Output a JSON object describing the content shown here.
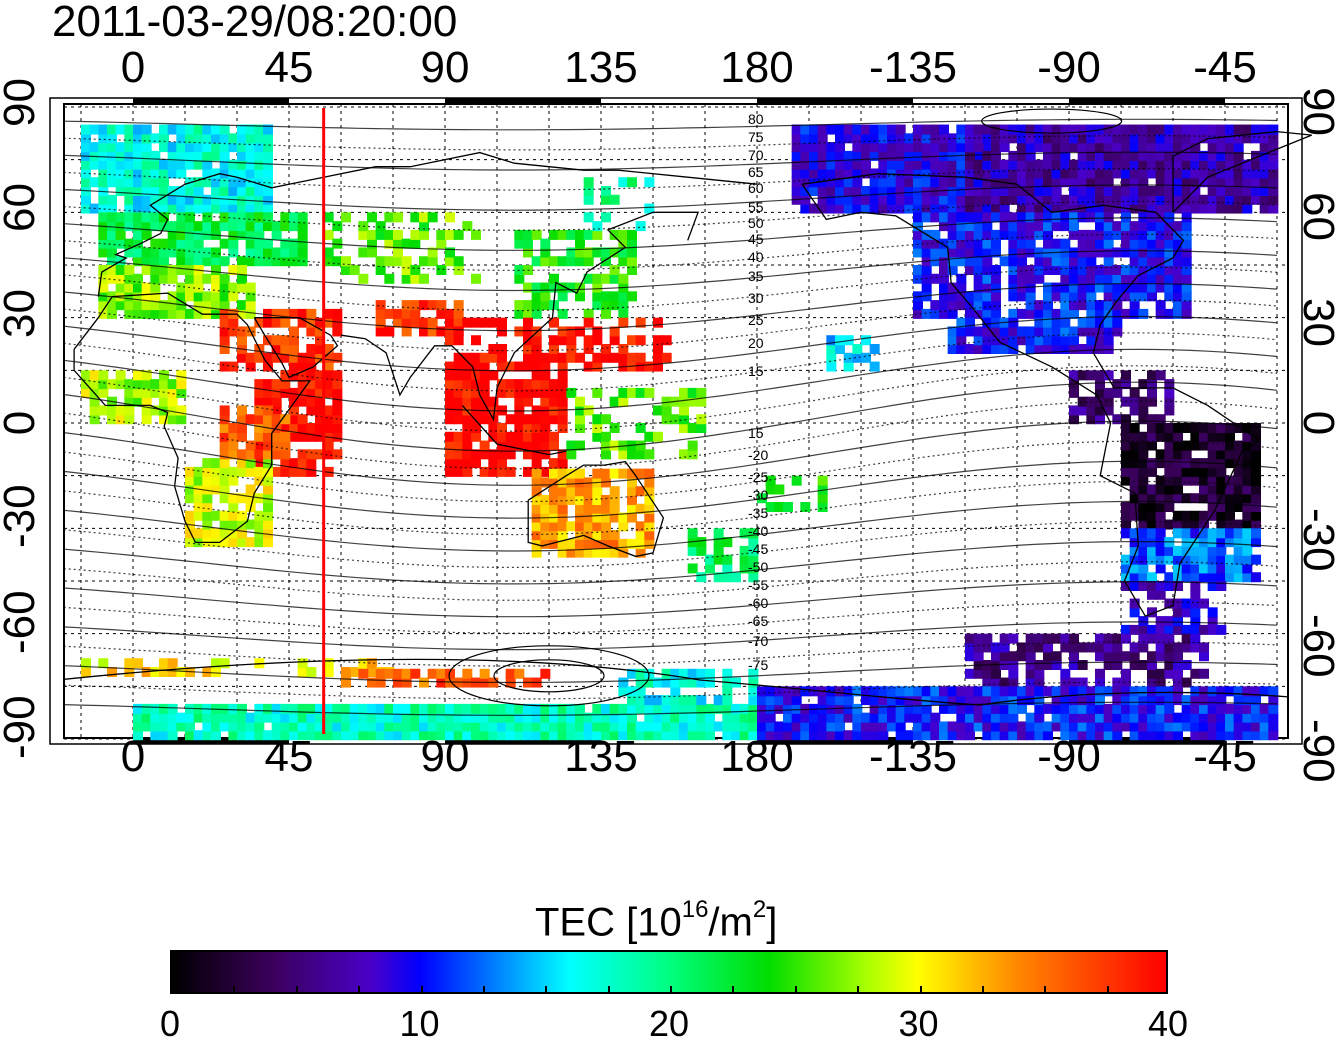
{
  "map": {
    "timestamp": "2011-03-29/08:20:00",
    "top_lon_labels": [
      "0",
      "45",
      "90",
      "135",
      "180",
      "-135",
      "-90",
      "-45"
    ],
    "bottom_lon_labels": [
      "0",
      "45",
      "90",
      "135",
      "180",
      "-135",
      "-90",
      "-45"
    ],
    "left_lat_labels": [
      "90",
      "60",
      "30",
      "0",
      "-30",
      "-60",
      "-90"
    ],
    "right_lat_labels": [
      "90",
      "60",
      "30",
      "0",
      "-30",
      "-60",
      "-90"
    ],
    "contour_labels": [
      "80",
      "75",
      "70",
      "65",
      "60",
      "55",
      "50",
      "45",
      "40",
      "35",
      "30",
      "25",
      "20",
      "15",
      "15",
      "-20",
      "-25",
      "-30",
      "-35",
      "-40",
      "-45",
      "-50",
      "-55",
      "-60",
      "-65",
      "-70",
      "-75"
    ],
    "marker_longitude": 55
  },
  "colorbar": {
    "title_prefix": "TEC  [10",
    "title_exp1": "16",
    "title_mid": "/m",
    "title_exp2": "2",
    "title_suffix": "]",
    "tick_labels": [
      "0",
      "10",
      "20",
      "30",
      "40"
    ],
    "min": 0,
    "max": 40,
    "colors": [
      "#000000",
      "#3a005a",
      "#0000ff",
      "#00ffff",
      "#00dd00",
      "#ffff00",
      "#ff8800",
      "#ff0000"
    ]
  }
}
